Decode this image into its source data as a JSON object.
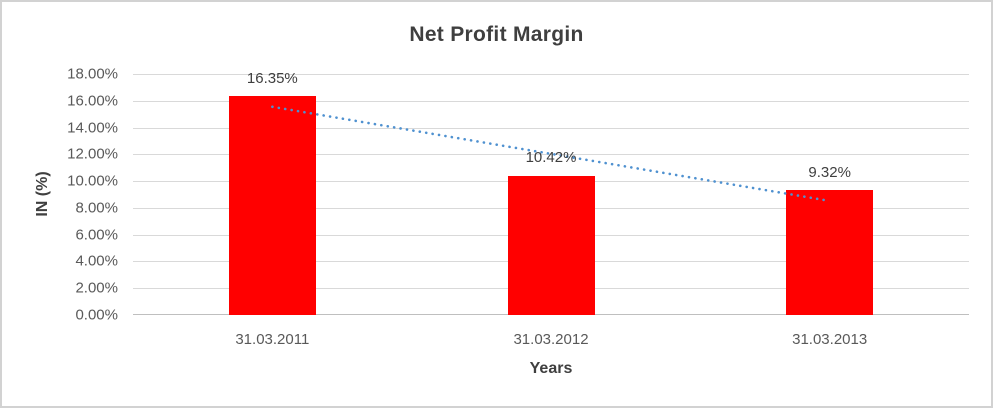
{
  "chart_data": {
    "type": "bar",
    "title": "Net Profit Margin",
    "xlabel": "Years",
    "ylabel": "IN (%)",
    "categories": [
      "31.03.2011",
      "31.03.2012",
      "31.03.2013"
    ],
    "values": [
      16.35,
      10.42,
      9.32
    ],
    "data_labels": [
      "16.35%",
      "10.42%",
      "9.32%"
    ],
    "y_ticks": [
      "18.00%",
      "16.00%",
      "14.00%",
      "12.00%",
      "10.00%",
      "8.00%",
      "6.00%",
      "4.00%",
      "2.00%",
      "0.00%"
    ],
    "ylim": [
      0,
      18
    ],
    "grid": true,
    "legend": false,
    "trendline": {
      "type": "linear",
      "style": "dotted",
      "start_value": 15.55,
      "end_value": 8.52
    },
    "colors": {
      "bar": "#ff0000",
      "trendline": "#4f91d0",
      "gridline": "#d9d9d9",
      "axis_line": "#bfbfbf",
      "title_text": "#3f3f3f",
      "tick_text": "#595959",
      "frame_border": "#d2d2d2",
      "background": "#ffffff"
    }
  }
}
